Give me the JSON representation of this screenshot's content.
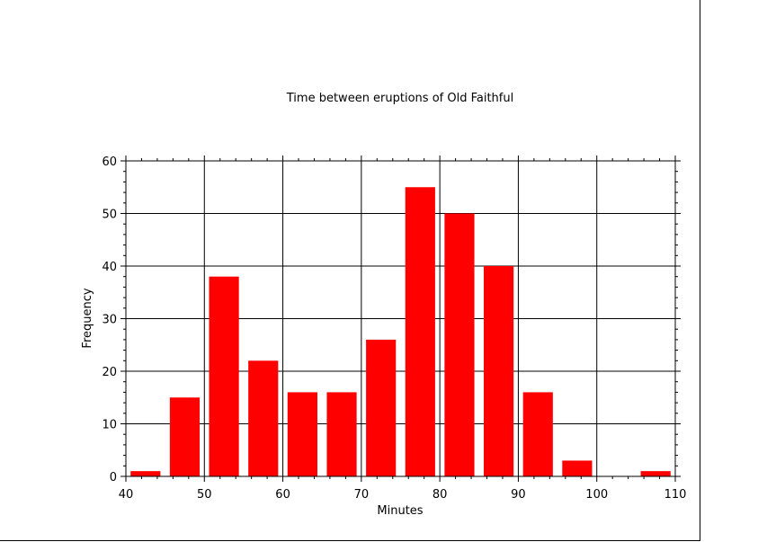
{
  "chart_data": {
    "type": "bar",
    "title": "Time between eruptions of Old Faithful",
    "xlabel": "Minutes",
    "ylabel": "Frequency",
    "xlim": [
      40,
      110
    ],
    "ylim": [
      0,
      60
    ],
    "x_ticks": [
      40,
      50,
      60,
      70,
      80,
      90,
      100,
      110
    ],
    "y_ticks": [
      0,
      10,
      20,
      30,
      40,
      50,
      60
    ],
    "bin_width": 5,
    "bins": [
      {
        "start": 40,
        "end": 45,
        "value": 1
      },
      {
        "start": 45,
        "end": 50,
        "value": 15
      },
      {
        "start": 50,
        "end": 55,
        "value": 38
      },
      {
        "start": 55,
        "end": 60,
        "value": 22
      },
      {
        "start": 60,
        "end": 65,
        "value": 16
      },
      {
        "start": 65,
        "end": 70,
        "value": 16
      },
      {
        "start": 70,
        "end": 75,
        "value": 26
      },
      {
        "start": 75,
        "end": 80,
        "value": 55
      },
      {
        "start": 80,
        "end": 85,
        "value": 50
      },
      {
        "start": 85,
        "end": 90,
        "value": 40
      },
      {
        "start": 90,
        "end": 95,
        "value": 16
      },
      {
        "start": 95,
        "end": 100,
        "value": 3
      },
      {
        "start": 100,
        "end": 105,
        "value": 0
      },
      {
        "start": 105,
        "end": 110,
        "value": 1
      }
    ],
    "bar_color": "#ff0000",
    "grid": true,
    "legend": false
  }
}
